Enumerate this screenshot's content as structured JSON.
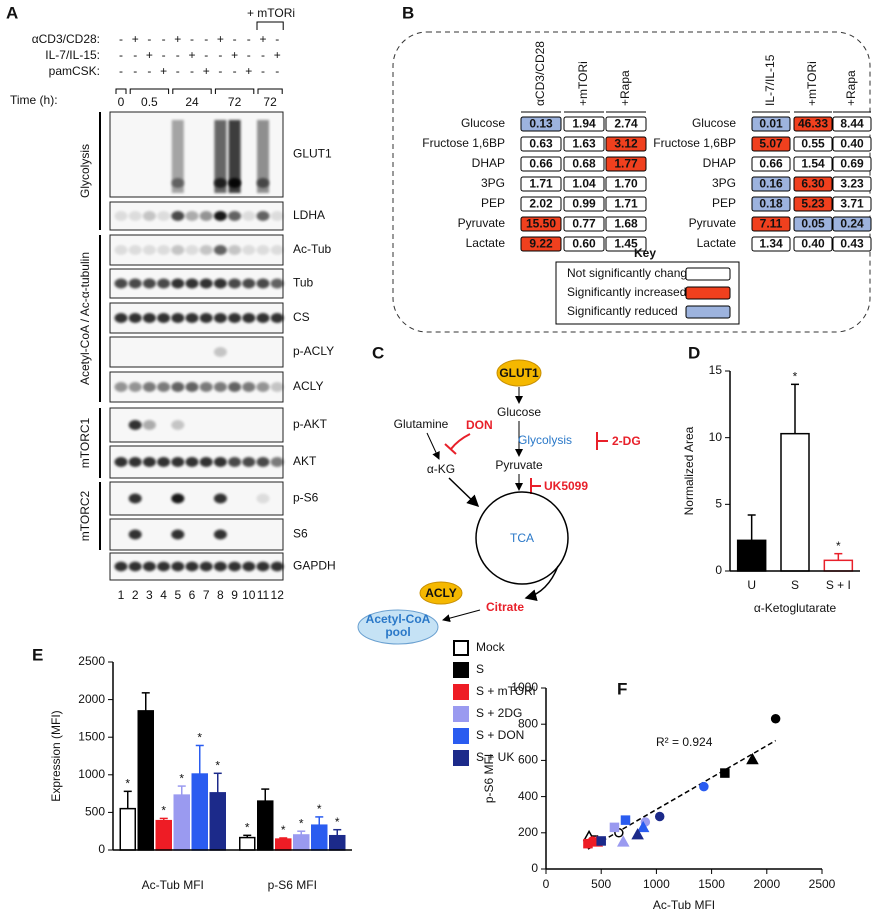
{
  "panel_labels": [
    "A",
    "B",
    "C",
    "D",
    "E",
    "F"
  ],
  "panel_a": {
    "conditions": [
      {
        "name": "αCD3/CD28:",
        "states": [
          "-",
          "+",
          "-",
          "-",
          "+",
          "-",
          "-",
          "+",
          "-",
          "-",
          "+",
          "-"
        ]
      },
      {
        "name": "IL-7/IL-15:",
        "states": [
          "-",
          "-",
          "+",
          "-",
          "-",
          "+",
          "-",
          "-",
          "+",
          "-",
          "-",
          "+"
        ]
      },
      {
        "name": "pamCSK:",
        "states": [
          "-",
          "-",
          "-",
          "+",
          "-",
          "-",
          "+",
          "-",
          "-",
          "+",
          "-",
          "-"
        ]
      }
    ],
    "inhibitor": "+ mTORi",
    "time_label": "Time (h):",
    "times": [
      "0",
      "0.5",
      "24",
      "72",
      "72"
    ],
    "groups": [
      "Glycolysis",
      "Acetyl-CoA / Ac-α-tubulin",
      "mTORC1",
      "mTORC2"
    ],
    "blots": [
      "GLUT1",
      "LDHA",
      "Ac-Tub",
      "Tub",
      "CS",
      "p-ACLY",
      "ACLY",
      "p-AKT",
      "AKT",
      "p-S6",
      "S6",
      "GAPDH"
    ],
    "lanes": [
      1,
      2,
      3,
      4,
      5,
      6,
      7,
      8,
      9,
      10,
      11,
      12
    ]
  },
  "panel_b": {
    "status_colors": {
      "unchanged": "#ffffff",
      "increased": "#f0401e",
      "reduced": "#9db3de"
    },
    "left": {
      "headers": [
        "αCD3/CD28",
        "+mTORi",
        "+Rapa"
      ],
      "rows": [
        {
          "label": "Glucose",
          "cells": [
            {
              "value": "0.13",
              "status": "reduced"
            },
            {
              "value": "1.94",
              "status": "unchanged"
            },
            {
              "value": "2.74",
              "status": "unchanged"
            }
          ]
        },
        {
          "label": "Fructose 1,6BP",
          "cells": [
            {
              "value": "0.63",
              "status": "unchanged"
            },
            {
              "value": "1.63",
              "status": "unchanged"
            },
            {
              "value": "3.12",
              "status": "increased"
            }
          ]
        },
        {
          "label": "DHAP",
          "cells": [
            {
              "value": "0.66",
              "status": "unchanged"
            },
            {
              "value": "0.68",
              "status": "unchanged"
            },
            {
              "value": "1.77",
              "status": "increased"
            }
          ]
        },
        {
          "label": "3PG",
          "cells": [
            {
              "value": "1.71",
              "status": "unchanged"
            },
            {
              "value": "1.04",
              "status": "unchanged"
            },
            {
              "value": "1.70",
              "status": "unchanged"
            }
          ]
        },
        {
          "label": "PEP",
          "cells": [
            {
              "value": "2.02",
              "status": "unchanged"
            },
            {
              "value": "0.99",
              "status": "unchanged"
            },
            {
              "value": "1.71",
              "status": "unchanged"
            }
          ]
        },
        {
          "label": "Pyruvate",
          "cells": [
            {
              "value": "15.50",
              "status": "increased"
            },
            {
              "value": "0.77",
              "status": "unchanged"
            },
            {
              "value": "1.68",
              "status": "unchanged"
            }
          ]
        },
        {
          "label": "Lactate",
          "cells": [
            {
              "value": "9.22",
              "status": "increased"
            },
            {
              "value": "0.60",
              "status": "unchanged"
            },
            {
              "value": "1.45",
              "status": "unchanged"
            }
          ]
        }
      ]
    },
    "right": {
      "headers": [
        "IL-7/IL-15",
        "+mTORi",
        "+Rapa"
      ],
      "rows": [
        {
          "label": "Glucose",
          "cells": [
            {
              "value": "0.01",
              "status": "reduced"
            },
            {
              "value": "46.33",
              "status": "increased"
            },
            {
              "value": "8.44",
              "status": "unchanged"
            }
          ]
        },
        {
          "label": "Fructose 1,6BP",
          "cells": [
            {
              "value": "5.07",
              "status": "increased"
            },
            {
              "value": "0.55",
              "status": "unchanged"
            },
            {
              "value": "0.40",
              "status": "unchanged"
            }
          ]
        },
        {
          "label": "DHAP",
          "cells": [
            {
              "value": "0.66",
              "status": "unchanged"
            },
            {
              "value": "1.54",
              "status": "unchanged"
            },
            {
              "value": "0.69",
              "status": "unchanged"
            }
          ]
        },
        {
          "label": "3PG",
          "cells": [
            {
              "value": "0.16",
              "status": "reduced"
            },
            {
              "value": "6.30",
              "status": "increased"
            },
            {
              "value": "3.23",
              "status": "unchanged"
            }
          ]
        },
        {
          "label": "PEP",
          "cells": [
            {
              "value": "0.18",
              "status": "reduced"
            },
            {
              "value": "5.23",
              "status": "increased"
            },
            {
              "value": "3.71",
              "status": "unchanged"
            }
          ]
        },
        {
          "label": "Pyruvate",
          "cells": [
            {
              "value": "7.11",
              "status": "increased"
            },
            {
              "value": "0.05",
              "status": "reduced"
            },
            {
              "value": "0.24",
              "status": "reduced"
            }
          ]
        },
        {
          "label": "Lactate",
          "cells": [
            {
              "value": "1.34",
              "status": "unchanged"
            },
            {
              "value": "0.40",
              "status": "unchanged"
            },
            {
              "value": "0.43",
              "status": "unchanged"
            }
          ]
        }
      ]
    },
    "key": {
      "title": "Key",
      "items": [
        {
          "label": "Not significantly changed",
          "status": "unchanged"
        },
        {
          "label": "Significantly increased",
          "status": "increased"
        },
        {
          "label": "Significantly reduced",
          "status": "reduced"
        }
      ]
    }
  },
  "panel_c": {
    "glut1": "GLUT1",
    "glucose": "Glucose",
    "glycolysis": "Glycolysis",
    "dg": "2-DG",
    "glutamine": "Glutamine",
    "don": "DON",
    "pyruvate": "Pyruvate",
    "uk": "UK5099",
    "akg": "α-KG",
    "tca": "TCA",
    "acly": "ACLY",
    "citrate": "Citrate",
    "pool": [
      "Acetyl-CoA",
      "pool"
    ]
  },
  "chart_data": [
    {
      "type": "bar",
      "ylabel": "Normalized Area",
      "xlabel": "α-Ketoglutarate",
      "categories": [
        "U",
        "S",
        "S + I"
      ],
      "values": [
        2.3,
        10.3,
        0.8
      ],
      "errors": [
        1.9,
        3.7,
        0.5
      ],
      "colors": [
        "#000000",
        "#ffffff",
        "#ffffff"
      ],
      "edge_colors": [
        "#000000",
        "#000000",
        "#e8202a"
      ],
      "significance": [
        null,
        "*",
        "*"
      ],
      "ylim": [
        0,
        15
      ],
      "yticks": [
        0,
        5,
        10,
        15
      ]
    },
    {
      "type": "grouped_bar",
      "ylabel": "Expression (MFI)",
      "categories": [
        "Ac-Tub MFI",
        "p-S6 MFI"
      ],
      "legend": "right",
      "ylim": [
        0,
        2500
      ],
      "yticks": [
        0,
        500,
        1000,
        1500,
        2000,
        2500
      ],
      "series": [
        {
          "name": "Mock",
          "color": "#ffffff",
          "edge": "#000000",
          "values": [
            550,
            165
          ],
          "errors": [
            230,
            30
          ],
          "significance": [
            "*",
            "*"
          ]
        },
        {
          "name": "S",
          "color": "#000000",
          "edge": "#000000",
          "values": [
            1850,
            650
          ],
          "errors": [
            240,
            160
          ],
          "significance": [
            null,
            null
          ]
        },
        {
          "name": "S + mTORi",
          "color": "#ee1c25",
          "edge": "#ee1c25",
          "values": [
            390,
            145
          ],
          "errors": [
            30,
            15
          ],
          "significance": [
            "*",
            "*"
          ]
        },
        {
          "name": "S + 2DG",
          "color": "#9a9af0",
          "edge": "#9a9af0",
          "values": [
            730,
            200
          ],
          "errors": [
            120,
            50
          ],
          "significance": [
            "*",
            "*"
          ]
        },
        {
          "name": "S + DON",
          "color": "#2a5cf0",
          "edge": "#2a5cf0",
          "values": [
            1010,
            330
          ],
          "errors": [
            380,
            110
          ],
          "significance": [
            "*",
            "*"
          ]
        },
        {
          "name": "S + UK",
          "color": "#1c2a8a",
          "edge": "#1c2a8a",
          "values": [
            760,
            190
          ],
          "errors": [
            260,
            80
          ],
          "significance": [
            "*",
            "*"
          ]
        }
      ]
    },
    {
      "type": "scatter",
      "xlabel": "Ac-Tub MFI",
      "ylabel": "p-S6 MFI",
      "annotation": "R² = 0.924",
      "trendline": "dashed",
      "xlim": [
        0,
        2500
      ],
      "xticks": [
        0,
        500,
        1000,
        1500,
        2000,
        2500
      ],
      "ylim": [
        0,
        1000
      ],
      "yticks": [
        0,
        200,
        400,
        600,
        800,
        1000
      ],
      "series": [
        {
          "color": "#ffffff",
          "edge": "#000000",
          "markers": [
            "circle",
            "square",
            "triangle"
          ],
          "x": [
            660,
            430,
            390
          ],
          "y": [
            200,
            160,
            180
          ]
        },
        {
          "color": "#000000",
          "edge": "#000000",
          "markers": [
            "circle",
            "square",
            "triangle"
          ],
          "x": [
            2080,
            1620,
            1870
          ],
          "y": [
            830,
            530,
            605
          ]
        },
        {
          "color": "#ee1c25",
          "edge": "#ee1c25",
          "markers": [
            "circle",
            "square",
            "triangle"
          ],
          "x": [
            420,
            380,
            460
          ],
          "y": [
            155,
            140,
            150
          ]
        },
        {
          "color": "#9a9af0",
          "edge": "#9a9af0",
          "markers": [
            "circle",
            "square",
            "triangle"
          ],
          "x": [
            900,
            620,
            700
          ],
          "y": [
            260,
            230,
            150
          ]
        },
        {
          "color": "#2a5cf0",
          "edge": "#2a5cf0",
          "markers": [
            "circle",
            "square",
            "triangle"
          ],
          "x": [
            1430,
            720,
            880
          ],
          "y": [
            455,
            270,
            230
          ]
        },
        {
          "color": "#1c2a8a",
          "edge": "#1c2a8a",
          "markers": [
            "circle",
            "square",
            "triangle"
          ],
          "x": [
            1030,
            500,
            830
          ],
          "y": [
            290,
            155,
            190
          ]
        }
      ]
    }
  ]
}
